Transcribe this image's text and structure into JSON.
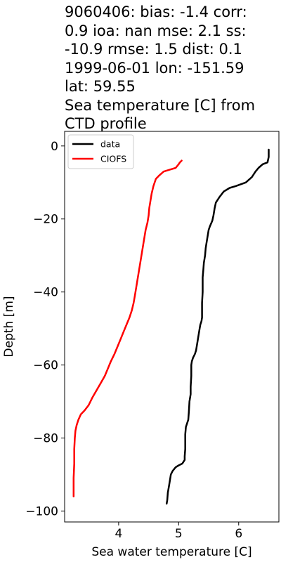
{
  "chart_data": {
    "type": "line",
    "title_lines": [
      "9060406: bias: -1.4  corr:",
      "0.9  ioa: nan  mse: 2.1  ss:",
      "-10.9  rmse: 1.5  dist: 0.1",
      "1999-06-01 lon: -151.59",
      "lat: 59.55",
      "Sea temperature [C] from",
      "CTD profile"
    ],
    "xlabel": "Sea water temperature [C]",
    "ylabel": "Depth [m]",
    "xlim": [
      3.1,
      6.67
    ],
    "ylim": [
      -103,
      4
    ],
    "xticks": [
      4,
      5,
      6
    ],
    "yticks": [
      0,
      -20,
      -40,
      -60,
      -80,
      -100
    ],
    "grid": false,
    "legend_position": "top-left",
    "series": [
      {
        "name": "data",
        "color": "#000000",
        "points": [
          [
            6.5,
            -1
          ],
          [
            6.5,
            -3
          ],
          [
            6.48,
            -4.5
          ],
          [
            6.4,
            -5
          ],
          [
            6.33,
            -6
          ],
          [
            6.28,
            -7
          ],
          [
            6.22,
            -8.5
          ],
          [
            6.12,
            -10
          ],
          [
            5.95,
            -11
          ],
          [
            5.85,
            -11.5
          ],
          [
            5.75,
            -12.5
          ],
          [
            5.68,
            -14
          ],
          [
            5.62,
            -15.5
          ],
          [
            5.6,
            -17
          ],
          [
            5.58,
            -19
          ],
          [
            5.56,
            -20.5
          ],
          [
            5.52,
            -22
          ],
          [
            5.5,
            -23
          ],
          [
            5.48,
            -25
          ],
          [
            5.46,
            -27
          ],
          [
            5.45,
            -28
          ],
          [
            5.44,
            -30
          ],
          [
            5.42,
            -32
          ],
          [
            5.41,
            -34
          ],
          [
            5.4,
            -36
          ],
          [
            5.4,
            -40
          ],
          [
            5.39,
            -43
          ],
          [
            5.39,
            -47
          ],
          [
            5.38,
            -48
          ],
          [
            5.36,
            -49
          ],
          [
            5.35,
            -50
          ],
          [
            5.33,
            -52
          ],
          [
            5.31,
            -54
          ],
          [
            5.29,
            -56
          ],
          [
            5.27,
            -57
          ],
          [
            5.24,
            -58
          ],
          [
            5.22,
            -59
          ],
          [
            5.21,
            -60
          ],
          [
            5.21,
            -63
          ],
          [
            5.2,
            -66
          ],
          [
            5.2,
            -68
          ],
          [
            5.18,
            -70
          ],
          [
            5.17,
            -73
          ],
          [
            5.16,
            -75
          ],
          [
            5.14,
            -76
          ],
          [
            5.12,
            -77
          ],
          [
            5.11,
            -79
          ],
          [
            5.11,
            -83
          ],
          [
            5.1,
            -85
          ],
          [
            5.1,
            -86
          ],
          [
            5.06,
            -87
          ],
          [
            5.0,
            -87.5
          ],
          [
            4.95,
            -88
          ],
          [
            4.9,
            -89
          ],
          [
            4.87,
            -90
          ],
          [
            4.86,
            -91
          ],
          [
            4.84,
            -93
          ],
          [
            4.82,
            -95
          ],
          [
            4.81,
            -97
          ],
          [
            4.8,
            -98
          ]
        ]
      },
      {
        "name": "CIOFS",
        "color": "#ff0000",
        "points": [
          [
            5.05,
            -4
          ],
          [
            5.02,
            -4.5
          ],
          [
            5.0,
            -5
          ],
          [
            4.95,
            -6
          ],
          [
            4.85,
            -6.5
          ],
          [
            4.75,
            -7
          ],
          [
            4.68,
            -8
          ],
          [
            4.62,
            -9
          ],
          [
            4.58,
            -11
          ],
          [
            4.55,
            -13
          ],
          [
            4.53,
            -15
          ],
          [
            4.51,
            -17
          ],
          [
            4.5,
            -19
          ],
          [
            4.48,
            -21
          ],
          [
            4.45,
            -23
          ],
          [
            4.43,
            -25
          ],
          [
            4.41,
            -27
          ],
          [
            4.39,
            -29
          ],
          [
            4.37,
            -31
          ],
          [
            4.35,
            -33
          ],
          [
            4.33,
            -35
          ],
          [
            4.31,
            -37
          ],
          [
            4.29,
            -39
          ],
          [
            4.27,
            -41
          ],
          [
            4.25,
            -43
          ],
          [
            4.22,
            -45
          ],
          [
            4.18,
            -47
          ],
          [
            4.13,
            -49
          ],
          [
            4.08,
            -51
          ],
          [
            4.03,
            -53
          ],
          [
            3.98,
            -55
          ],
          [
            3.93,
            -57
          ],
          [
            3.87,
            -59
          ],
          [
            3.82,
            -61
          ],
          [
            3.77,
            -63
          ],
          [
            3.7,
            -65
          ],
          [
            3.63,
            -67
          ],
          [
            3.56,
            -69
          ],
          [
            3.5,
            -71
          ],
          [
            3.43,
            -72.5
          ],
          [
            3.37,
            -73.5
          ],
          [
            3.33,
            -75
          ],
          [
            3.3,
            -76.5
          ],
          [
            3.28,
            -78
          ],
          [
            3.27,
            -80
          ],
          [
            3.26,
            -83
          ],
          [
            3.26,
            -87
          ],
          [
            3.25,
            -91
          ],
          [
            3.25,
            -96
          ]
        ]
      }
    ]
  }
}
